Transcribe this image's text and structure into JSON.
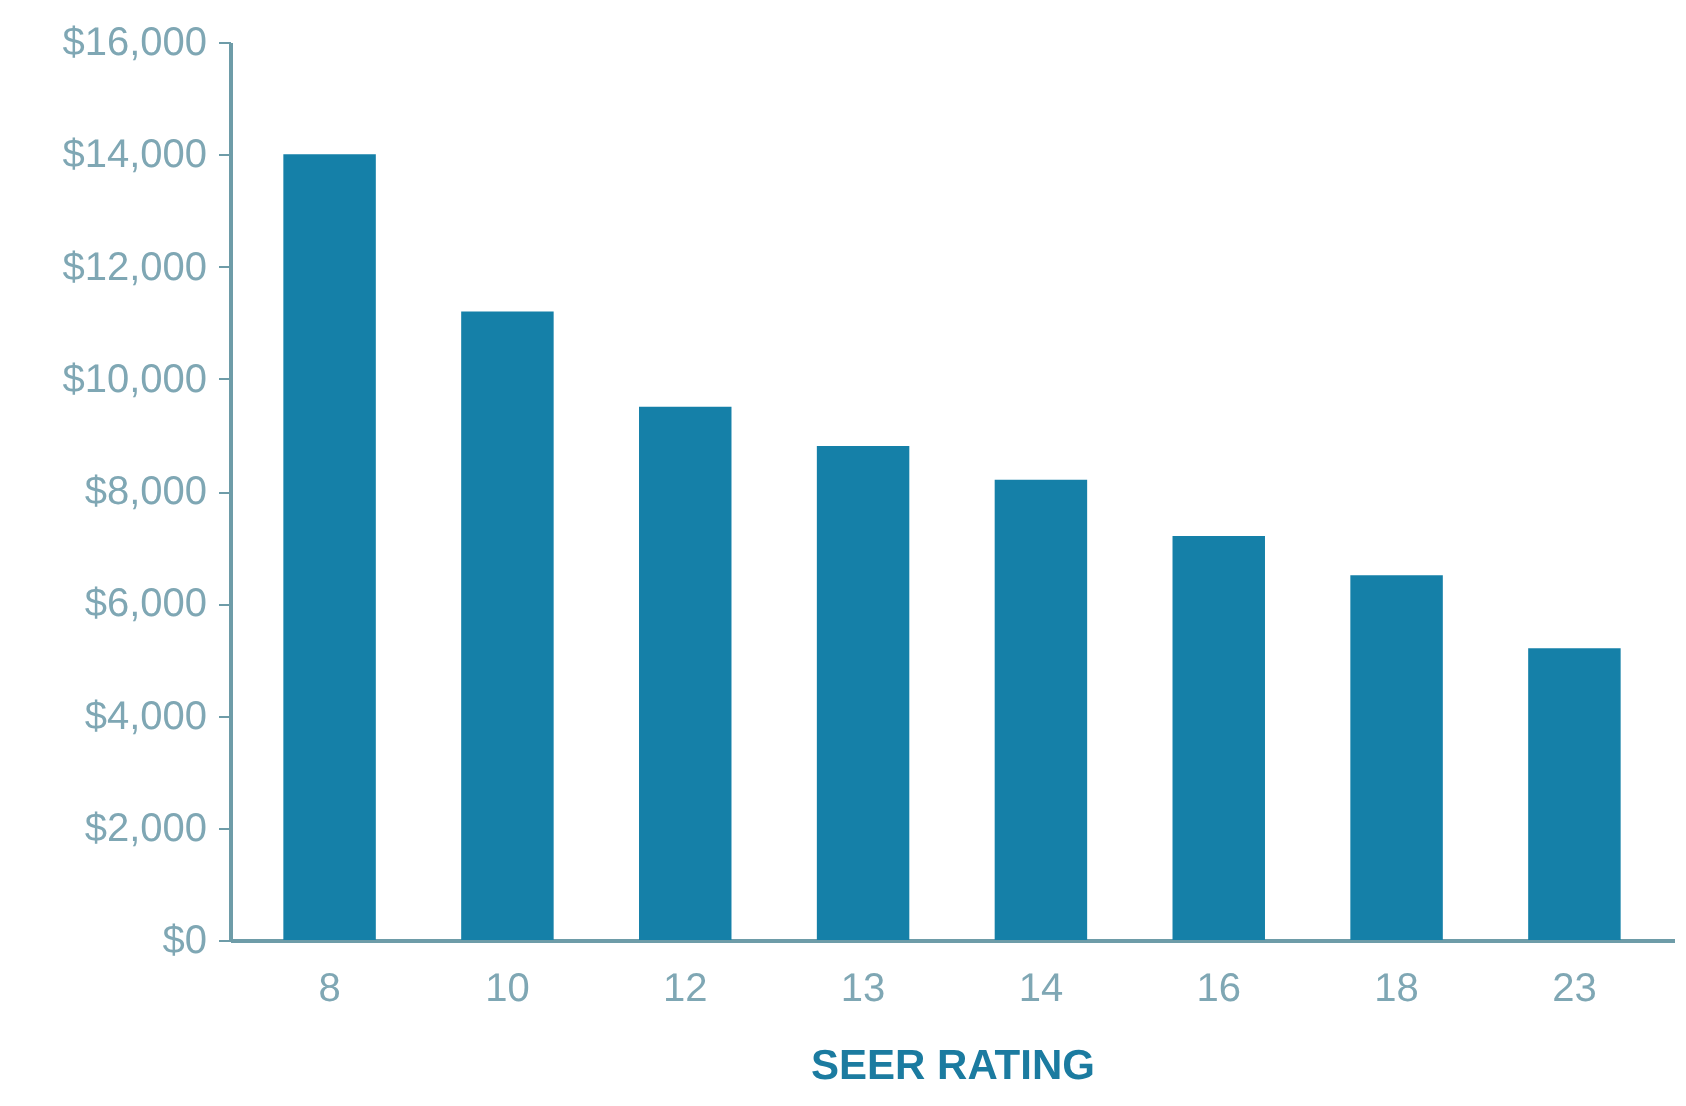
{
  "chart_data": {
    "type": "bar",
    "xlabel": "SEER RATING",
    "categories": [
      "8",
      "10",
      "12",
      "13",
      "14",
      "16",
      "18",
      "23"
    ],
    "values": [
      14000,
      11200,
      9500,
      8800,
      8200,
      7200,
      6500,
      5200
    ],
    "color": "#1580a8",
    "ylim": [
      0,
      16000
    ],
    "yticks": [
      {
        "value": 0,
        "label": "$0"
      },
      {
        "value": 2000,
        "label": "$2,000"
      },
      {
        "value": 4000,
        "label": "$4,000"
      },
      {
        "value": 6000,
        "label": "$6,000"
      },
      {
        "value": 8000,
        "label": "$8,000"
      },
      {
        "value": 10000,
        "label": "$10,000"
      },
      {
        "value": 12000,
        "label": "$12,000"
      },
      {
        "value": 14000,
        "label": "$14,000"
      },
      {
        "value": 16000,
        "label": "$16,000"
      }
    ],
    "grid": false
  }
}
